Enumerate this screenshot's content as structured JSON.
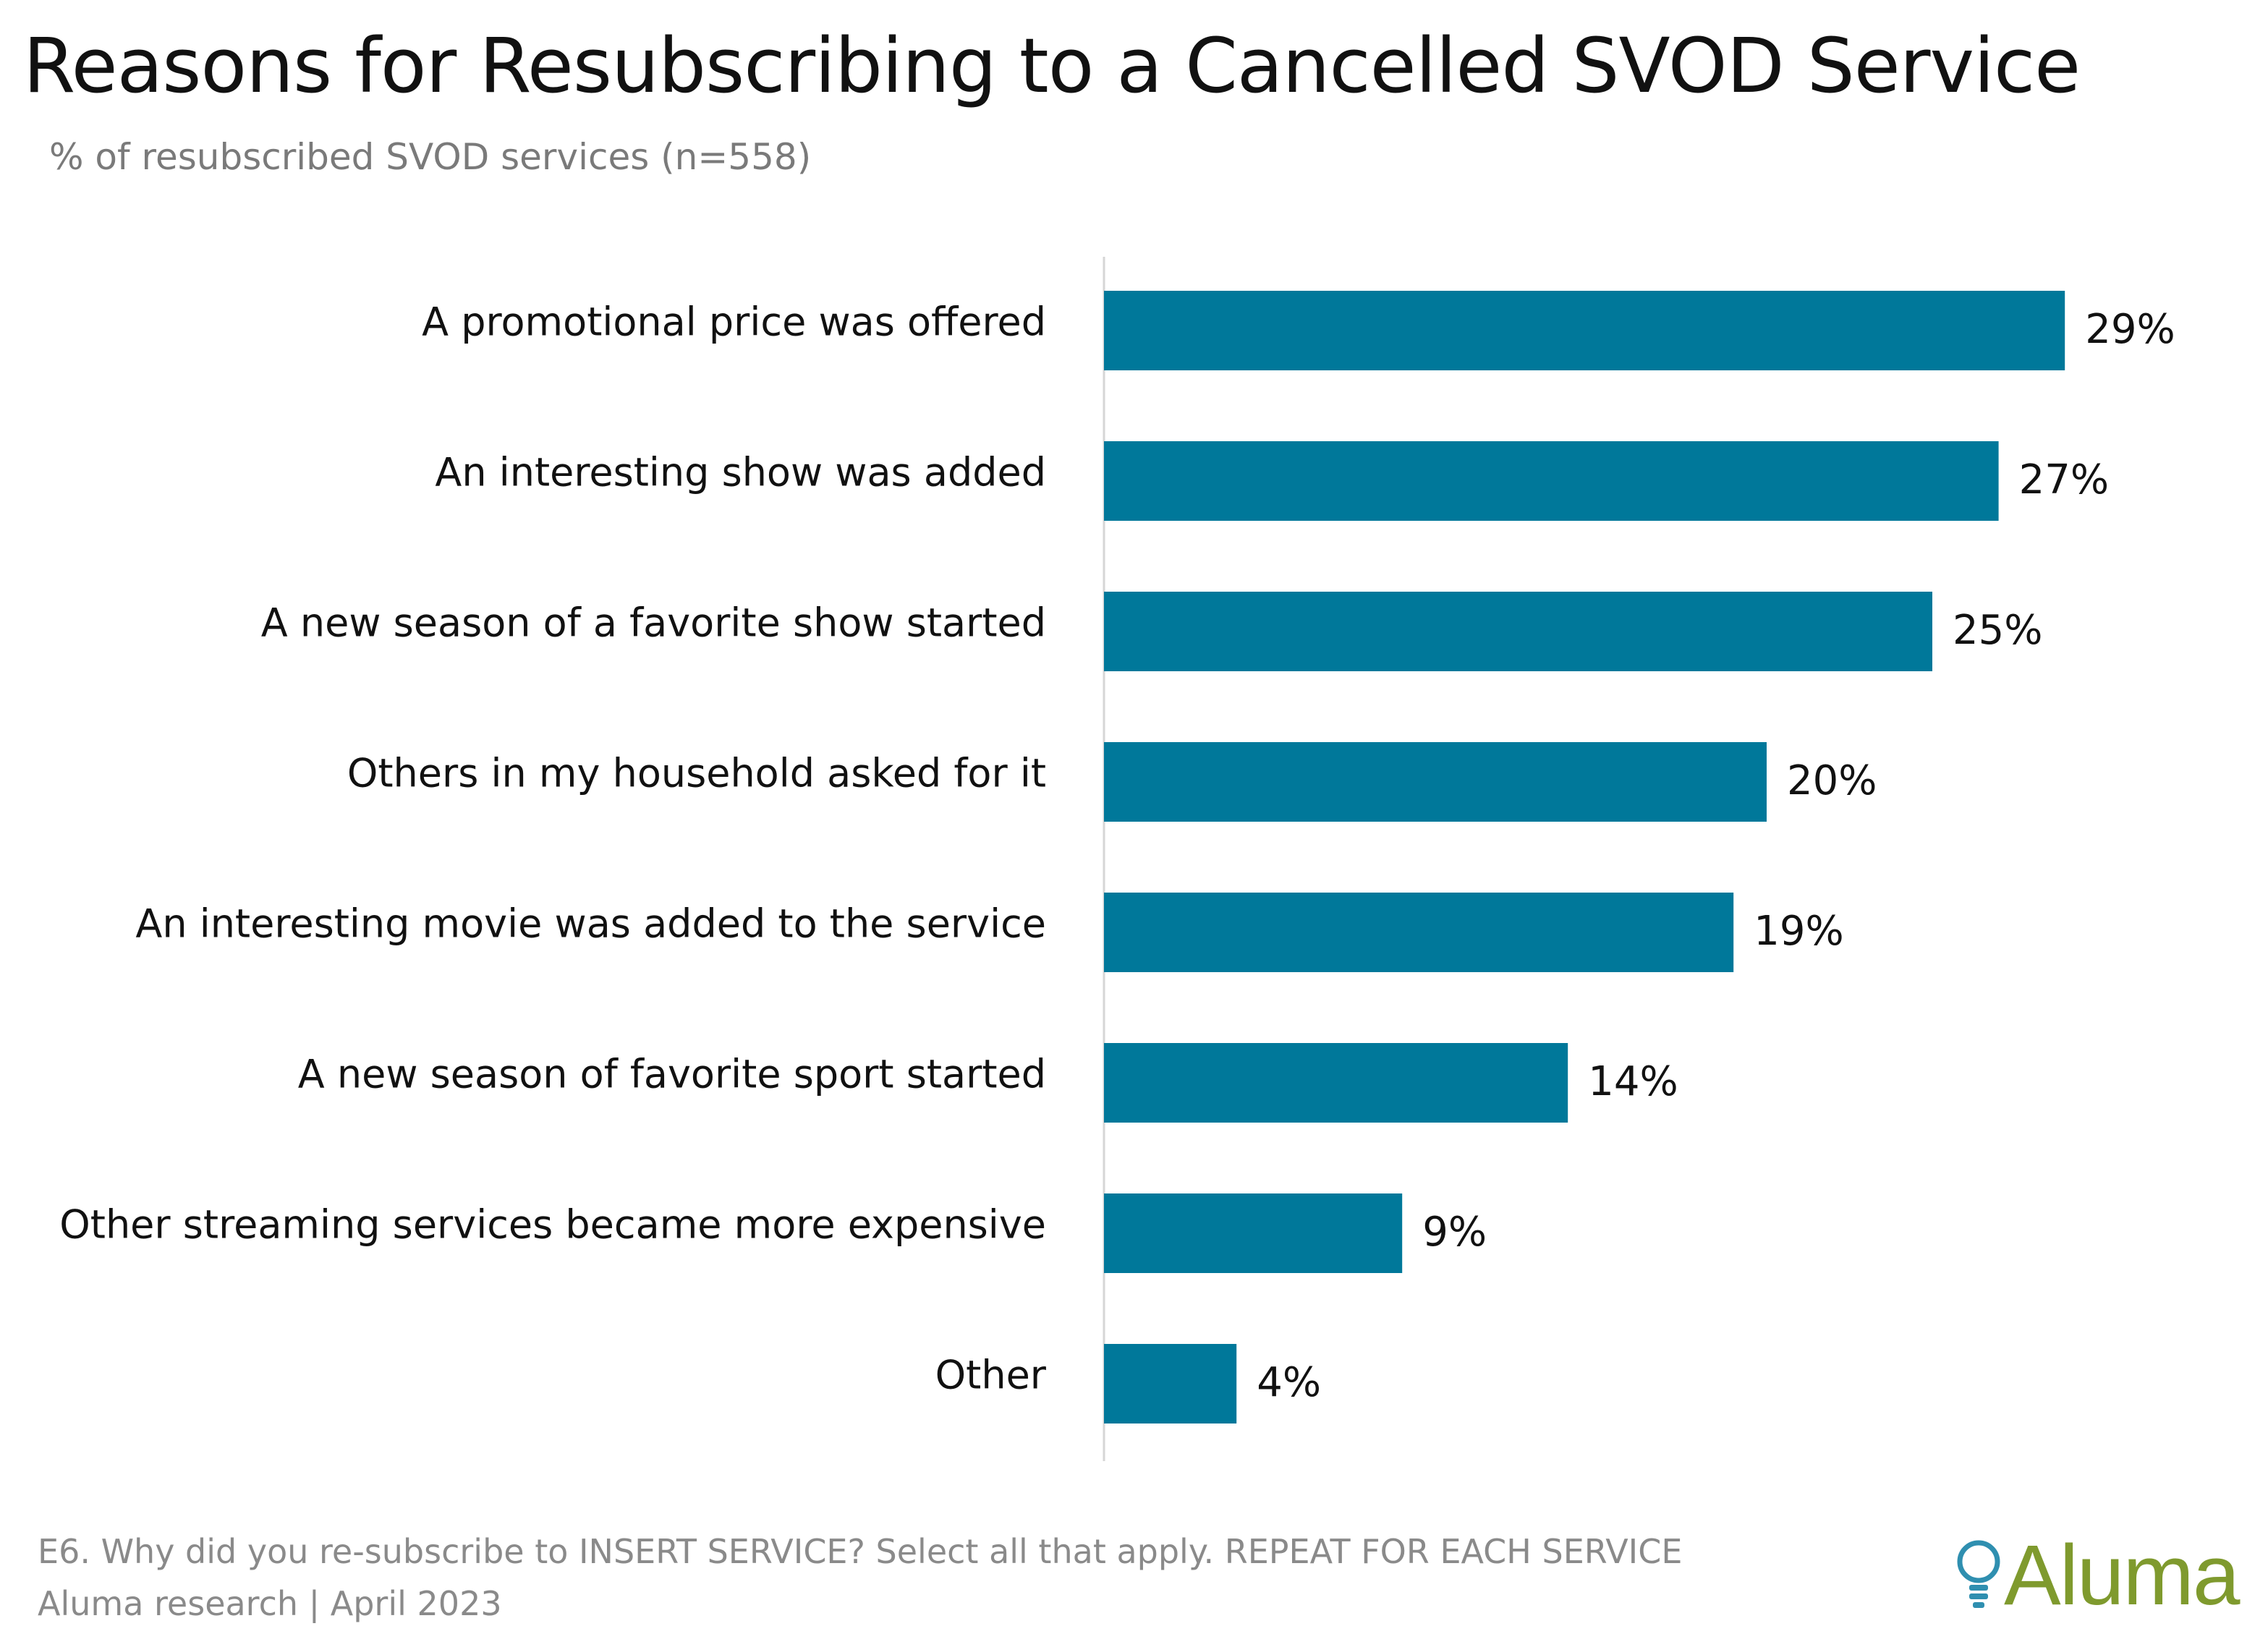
{
  "chart_data": {
    "type": "bar",
    "orientation": "horizontal",
    "title": "Reasons for Resubscribing to a  Cancelled SVOD Service",
    "subtitle": "% of resubscribed SVOD services (n=558)",
    "categories": [
      "A promotional price was offered",
      "An interesting show was added",
      "A new season of a favorite show started",
      "Others in my household asked for it",
      "An interesting movie was added to the service",
      "A new season of favorite sport started",
      "Other streaming services became more expensive",
      "Other"
    ],
    "values": [
      29,
      27,
      25,
      20,
      19,
      14,
      9,
      4
    ],
    "value_labels": [
      "29%",
      "27%",
      "25%",
      "20%",
      "19%",
      "14%",
      "9%",
      "4%"
    ],
    "unit": "%",
    "xlim": [
      0,
      30
    ],
    "grid": false,
    "legend": "none",
    "bar_color": "#00789a"
  },
  "footer": {
    "question": "E6. Why did you re-subscribe to INSERT SERVICE? Select all that apply. REPEAT FOR EACH SERVICE",
    "source": "Aluma research | April 2023"
  },
  "logo": {
    "text": "Aluma",
    "icon": "lightbulb-icon",
    "color": "#7f9a2e",
    "icon_color": "#2f8fb0"
  }
}
